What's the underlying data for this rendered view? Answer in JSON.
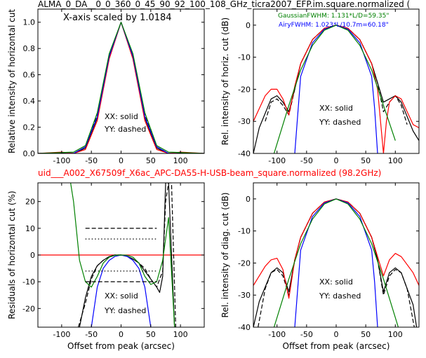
{
  "figure": {
    "title_top": "ALMA_0_DA__0_0_360_0_45_90_92_100_108_GHz_ticra2007_EFP.im.square.normalized (",
    "title_mid": "uid___A002_X67509f_X6ac_APC-DA55-H-USB-beam_square.normalized (98.2GHz)",
    "title_mid_color": "#ff0000",
    "legend_solid": "XX: solid",
    "legend_dashed": "YY: dashed"
  },
  "chart_data": [
    {
      "type": "line",
      "ylabel": "Relative intensity of horizontal cut",
      "xlabel": "",
      "annotation": "X-axis scaled by 1.0184",
      "xlim": [
        -140,
        140
      ],
      "ylim": [
        0,
        1.1
      ],
      "xticks": [
        -100,
        -50,
        0,
        50,
        100
      ],
      "yticks": [
        0.0,
        0.2,
        0.4,
        0.6,
        0.8,
        1.0
      ],
      "series": [
        {
          "style": "solid",
          "color": "#000000",
          "x": [
            -140,
            -100,
            -80,
            -60,
            -40,
            -20,
            0,
            20,
            40,
            60,
            80,
            100,
            140
          ],
          "y": [
            0.0,
            0.005,
            0.0,
            0.04,
            0.27,
            0.73,
            1.0,
            0.73,
            0.27,
            0.04,
            0.0,
            0.005,
            0.0
          ]
        },
        {
          "style": "dashed",
          "color": "#000000",
          "x": [
            -140,
            -100,
            -80,
            -60,
            -40,
            -20,
            0,
            20,
            40,
            60,
            80,
            100,
            140
          ],
          "y": [
            0.0,
            0.005,
            0.0,
            0.05,
            0.29,
            0.74,
            1.0,
            0.74,
            0.29,
            0.05,
            0.0,
            0.005,
            0.0
          ]
        },
        {
          "style": "solid",
          "color": "#ff0000",
          "x": [
            -140,
            -100,
            -80,
            -60,
            -40,
            -20,
            0,
            20,
            40,
            60,
            80,
            100,
            140
          ],
          "y": [
            0.0,
            0.01,
            0.0,
            0.03,
            0.25,
            0.72,
            1.0,
            0.72,
            0.25,
            0.03,
            0.0,
            0.01,
            0.0
          ]
        },
        {
          "style": "solid",
          "color": "#0000ff",
          "x": [
            -140,
            -80,
            -60,
            -40,
            -20,
            0,
            20,
            40,
            60,
            80,
            140
          ],
          "y": [
            0.0,
            0.0,
            0.05,
            0.28,
            0.74,
            1.0,
            0.74,
            0.28,
            0.05,
            0.0,
            0.0
          ]
        },
        {
          "style": "solid",
          "color": "#008000",
          "x": [
            -140,
            -80,
            -60,
            -40,
            -20,
            0,
            20,
            40,
            60,
            80,
            140
          ],
          "y": [
            0.0,
            0.01,
            0.06,
            0.31,
            0.76,
            1.0,
            0.76,
            0.31,
            0.06,
            0.01,
            0.0
          ]
        }
      ]
    },
    {
      "type": "line",
      "ylabel": "Rel. intensity of horiz. cut (dB)",
      "xlabel": "",
      "annotation_green": "GaussianFWHM: 1.131*L/D=59.35\"",
      "annotation_blue": "AiryFWHM: 1.023*L/10.7m=60.18\"",
      "xlim": [
        -140,
        140
      ],
      "ylim": [
        -40,
        5
      ],
      "xticks": [
        -100,
        -50,
        0,
        50,
        100
      ],
      "yticks": [
        0,
        -10,
        -20,
        -30,
        -40
      ],
      "series": [
        {
          "style": "solid",
          "color": "#000000",
          "x": [
            -140,
            -130,
            -110,
            -100,
            -90,
            -80,
            -70,
            -60,
            -40,
            -20,
            0,
            20,
            40,
            60,
            70,
            80,
            90,
            100,
            110,
            130,
            140
          ],
          "y": [
            -40,
            -32,
            -23,
            -22,
            -24,
            -27,
            -20,
            -12,
            -4.5,
            -1,
            0,
            -1,
            -4.5,
            -12,
            -18,
            -24,
            -23,
            -22,
            -24,
            -33,
            -36
          ]
        },
        {
          "style": "dashed",
          "color": "#000000",
          "x": [
            -120,
            -110,
            -100,
            -90,
            -80,
            -70,
            -60,
            -40,
            -20,
            0,
            20,
            40,
            60,
            70,
            80,
            90,
            100,
            110,
            120
          ],
          "y": [
            -30,
            -24,
            -23,
            -25,
            -28,
            -20,
            -12,
            -4.5,
            -1,
            0,
            -1,
            -4.5,
            -12,
            -18,
            -27,
            -24,
            -22,
            -25,
            -31
          ]
        },
        {
          "style": "solid",
          "color": "#ff0000",
          "x": [
            -140,
            -120,
            -110,
            -100,
            -90,
            -80,
            -70,
            -60,
            -40,
            -20,
            0,
            20,
            40,
            60,
            70,
            75,
            80,
            85,
            90,
            100,
            110,
            130,
            140
          ],
          "y": [
            -30,
            -22,
            -20,
            -20,
            -23,
            -28,
            -19,
            -12,
            -4.5,
            -1,
            0,
            -1,
            -4.5,
            -12,
            -20,
            -30,
            -40,
            -30,
            -24,
            -22,
            -23,
            -31,
            -32
          ]
        },
        {
          "style": "solid",
          "color": "#0000ff",
          "x": [
            -70,
            -60,
            -40,
            -20,
            0,
            20,
            40,
            60,
            65,
            70
          ],
          "y": [
            -40,
            -16,
            -5.5,
            -1.3,
            0,
            -1.3,
            -5.5,
            -16,
            -26,
            -40
          ]
        },
        {
          "style": "solid",
          "color": "#008000",
          "x": [
            -105,
            -80,
            -60,
            -40,
            -20,
            0,
            20,
            40,
            60,
            80,
            100
          ],
          "y": [
            -40,
            -25,
            -14,
            -6.3,
            -1.6,
            0,
            -1.6,
            -6.3,
            -14,
            -25,
            -36
          ]
        }
      ]
    },
    {
      "type": "line",
      "ylabel": "Residuals of horizontal cut (%)",
      "xlabel": "Offset from peak (arcsec)",
      "xlim": [
        -140,
        140
      ],
      "ylim": [
        -27,
        27
      ],
      "xticks": [
        -100,
        -50,
        0,
        50,
        100
      ],
      "yticks": [
        20,
        10,
        0,
        -10,
        -20
      ],
      "series": [
        {
          "style": "solid",
          "color": "#ff0000",
          "x": [
            -140,
            140
          ],
          "y": [
            0,
            0
          ]
        },
        {
          "style": "solid",
          "color": "#000000",
          "x": [
            -70,
            -60,
            -50,
            -40,
            -30,
            -20,
            -10,
            0,
            10,
            20,
            30,
            40,
            50,
            60,
            65,
            70,
            75,
            80,
            90
          ],
          "y": [
            -27,
            -16,
            -8,
            -4,
            -2,
            -0.6,
            0,
            0,
            -0.5,
            -1.5,
            -3,
            -6,
            -9,
            -12,
            -14,
            -8,
            27,
            27,
            -27
          ]
        },
        {
          "style": "dashed",
          "color": "#000000",
          "x": [
            -72,
            -60,
            -50,
            -40,
            -30,
            -20,
            -10,
            0,
            10,
            20,
            30,
            40,
            50,
            60,
            70,
            75,
            80,
            85,
            92
          ],
          "y": [
            -27,
            -18,
            -9,
            -4,
            -2,
            -0.6,
            0,
            0,
            -0.5,
            -1.5,
            -3,
            -5,
            -9,
            -12,
            -6,
            20,
            27,
            27,
            -27
          ]
        },
        {
          "style": "solid",
          "color": "#0000ff",
          "x": [
            -50,
            -40,
            -30,
            -20,
            -10,
            0,
            10,
            20,
            30,
            40,
            50
          ],
          "y": [
            -27,
            -12,
            -5,
            -2,
            -0.5,
            0,
            -0.5,
            -2,
            -5,
            -12,
            -27
          ]
        },
        {
          "style": "solid",
          "color": "#008000",
          "x": [
            -85,
            -80,
            -70,
            -60,
            -50,
            -40,
            -30,
            -20,
            -10,
            0,
            10,
            20,
            30,
            40,
            50,
            60,
            70,
            80,
            90
          ],
          "y": [
            27,
            20,
            -2,
            -10,
            -12,
            -8,
            -3,
            -0.8,
            -0.1,
            0,
            -0.1,
            -0.8,
            -3,
            -8,
            -11,
            -10,
            -2,
            14,
            -27
          ]
        },
        {
          "style": "dashed",
          "color": "#000000",
          "x": [
            -60,
            60
          ],
          "y": [
            10,
            10
          ]
        },
        {
          "style": "dashed",
          "color": "#000000",
          "x": [
            -60,
            60
          ],
          "y": [
            -10,
            -10
          ]
        },
        {
          "style": "dotted",
          "color": "#000000",
          "x": [
            -60,
            60
          ],
          "y": [
            6,
            6
          ]
        },
        {
          "style": "dotted",
          "color": "#000000",
          "x": [
            -60,
            60
          ],
          "y": [
            -6,
            -6
          ]
        }
      ]
    },
    {
      "type": "line",
      "ylabel": "Rel. intensity of diag. cut (dB)",
      "xlabel": "Offset from peak (arcsec)",
      "xlim": [
        -140,
        140
      ],
      "ylim": [
        -40,
        5
      ],
      "xticks": [
        -100,
        -50,
        0,
        50,
        100
      ],
      "yticks": [
        0,
        -10,
        -20,
        -30,
        -40
      ],
      "series": [
        {
          "style": "solid",
          "color": "#000000",
          "x": [
            -140,
            -130,
            -110,
            -100,
            -90,
            -80,
            -70,
            -60,
            -40,
            -20,
            0,
            20,
            40,
            60,
            70,
            80,
            90,
            100,
            110,
            130,
            136
          ],
          "y": [
            -40,
            -32,
            -23,
            -21.5,
            -23,
            -29,
            -19,
            -12,
            -4.5,
            -1,
            0,
            -1,
            -4.5,
            -12,
            -19,
            -29,
            -23,
            -21.5,
            -23,
            -33,
            -40
          ]
        },
        {
          "style": "dashed",
          "color": "#000000",
          "x": [
            -132,
            -120,
            -110,
            -100,
            -90,
            -80,
            -70,
            -60,
            -40,
            -20,
            0,
            20,
            40,
            60,
            70,
            80,
            90,
            100,
            110,
            120,
            132
          ],
          "y": [
            -40,
            -28,
            -23,
            -22,
            -24,
            -30,
            -19,
            -12,
            -4.5,
            -1,
            0,
            -1,
            -4.5,
            -12,
            -19,
            -30,
            -24,
            -22,
            -23,
            -28,
            -40
          ]
        },
        {
          "style": "solid",
          "color": "#ff0000",
          "x": [
            -140,
            -120,
            -110,
            -100,
            -90,
            -80,
            -70,
            -60,
            -40,
            -20,
            0,
            20,
            40,
            60,
            70,
            80,
            90,
            100,
            110,
            130,
            140
          ],
          "y": [
            -27,
            -21,
            -19,
            -18.5,
            -22,
            -31,
            -19,
            -12,
            -4.5,
            -1,
            0,
            -1,
            -4.5,
            -12,
            -18,
            -24,
            -19,
            -17,
            -18,
            -23,
            -27
          ]
        },
        {
          "style": "solid",
          "color": "#0000ff",
          "x": [
            -70,
            -60,
            -40,
            -20,
            0,
            20,
            40,
            60,
            65,
            70
          ],
          "y": [
            -40,
            -16,
            -5.5,
            -1.3,
            0,
            -1.3,
            -5.5,
            -16,
            -26,
            -40
          ]
        },
        {
          "style": "solid",
          "color": "#008000",
          "x": [
            -105,
            -80,
            -60,
            -40,
            -20,
            0,
            20,
            40,
            60,
            80,
            105
          ],
          "y": [
            -40,
            -25,
            -14,
            -6.3,
            -1.6,
            0,
            -1.6,
            -6.3,
            -14,
            -25,
            -40
          ]
        }
      ]
    }
  ]
}
